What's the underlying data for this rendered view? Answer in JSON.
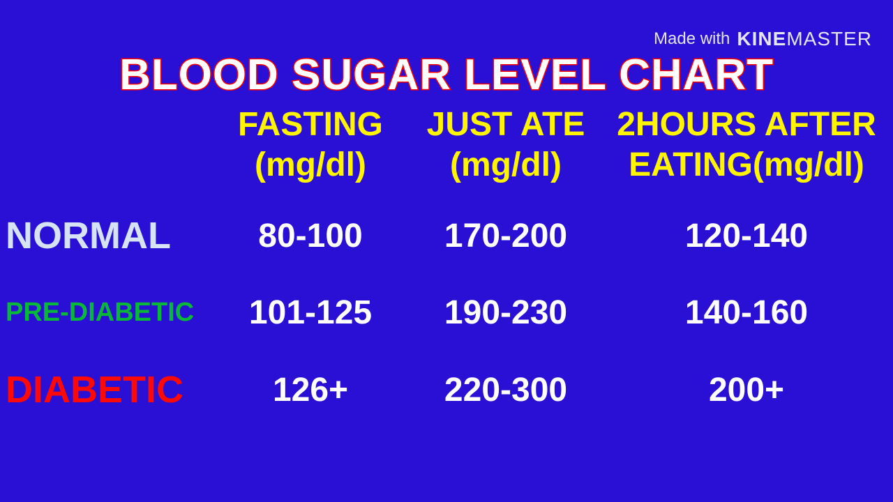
{
  "watermark": {
    "prefix": "Made with",
    "brand_bold": "KINE",
    "brand_light": "MASTER"
  },
  "chart": {
    "type": "table",
    "title": "BLOOD SUGAR LEVEL CHART",
    "title_color_fill": "#ffffff",
    "title_color_stroke": "#ff0000",
    "title_fontsize": 62,
    "background_color": "#2a0fd4",
    "columns": [
      {
        "line1": "FASTING",
        "line2": "(mg/dl)"
      },
      {
        "line1": "JUST ATE",
        "line2": "(mg/dl)"
      },
      {
        "line1": "2HOURS AFTER",
        "line2": "EATING(mg/dl)"
      }
    ],
    "header_color": "#fff500",
    "header_fontsize": 48,
    "rows": [
      {
        "label": "NORMAL",
        "label_color": "#d5e3f5",
        "label_fontsize": 54,
        "values": [
          "80-100",
          "170-200",
          "120-140"
        ]
      },
      {
        "label": "PRE-DIABETIC",
        "label_color": "#08b838",
        "label_fontsize": 38,
        "values": [
          "101-125",
          "190-230",
          "140-160"
        ]
      },
      {
        "label": "DIABETIC",
        "label_color": "#ff0808",
        "label_fontsize": 54,
        "values": [
          "126+",
          "220-300",
          "200+"
        ]
      }
    ],
    "value_color": "#ffffff",
    "value_fontsize": 48
  }
}
